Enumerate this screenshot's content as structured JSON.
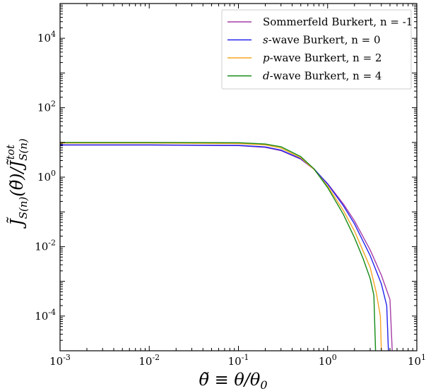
{
  "chart_data": {
    "type": "line",
    "xscale": "log",
    "yscale": "log",
    "xlim": [
      0.001,
      10
    ],
    "ylim": [
      1e-05,
      100000
    ],
    "xlabel": "θ̃ ≡ θ/θ0",
    "ylabel": "J̃S(n)(θ̃)/J̃S(n)tot",
    "xticks": [
      {
        "value": 0.001,
        "base": "10",
        "exp": "-3"
      },
      {
        "value": 0.01,
        "base": "10",
        "exp": "-2"
      },
      {
        "value": 0.1,
        "base": "10",
        "exp": "-1"
      },
      {
        "value": 1,
        "base": "10",
        "exp": "0"
      },
      {
        "value": 10,
        "base": "10",
        "exp": "1"
      }
    ],
    "yticks": [
      {
        "value": 0.0001,
        "base": "10",
        "exp": "-4"
      },
      {
        "value": 0.01,
        "base": "10",
        "exp": "-2"
      },
      {
        "value": 1,
        "base": "10",
        "exp": "0"
      },
      {
        "value": 100,
        "base": "10",
        "exp": "2"
      },
      {
        "value": 10000,
        "base": "10",
        "exp": "4"
      }
    ],
    "legend_location": "top-right",
    "grid": false,
    "series": [
      {
        "name": "Sommerfeld Burkert, n = -1",
        "color": "#a63da6",
        "x": [
          0.001,
          0.01,
          0.1,
          0.2,
          0.3,
          0.5,
          0.7,
          1.0,
          1.5,
          2.0,
          3.0,
          4.0,
          5.0,
          5.3
        ],
        "y": [
          8.4,
          8.4,
          8.1,
          7.2,
          5.8,
          3.3,
          1.7,
          0.65,
          0.17,
          0.055,
          0.008,
          0.0015,
          0.0003,
          1e-05
        ]
      },
      {
        "name": "s-wave Burkert, n = 0",
        "color": "#2222ee",
        "x": [
          0.001,
          0.01,
          0.1,
          0.2,
          0.3,
          0.5,
          0.7,
          1.0,
          1.5,
          2.0,
          3.0,
          4.0,
          4.6,
          4.8
        ],
        "y": [
          8.5,
          8.5,
          8.2,
          7.4,
          6.0,
          3.4,
          1.75,
          0.63,
          0.15,
          0.045,
          0.0055,
          0.00085,
          0.0002,
          1e-05
        ]
      },
      {
        "name": "p-wave Burkert, n = 2",
        "color": "#f5a623",
        "x": [
          0.001,
          0.01,
          0.1,
          0.2,
          0.3,
          0.5,
          0.7,
          1.0,
          1.5,
          2.0,
          3.0,
          3.5,
          3.9,
          4.0
        ],
        "y": [
          9.6,
          9.6,
          9.3,
          8.5,
          6.9,
          3.6,
          1.7,
          0.55,
          0.11,
          0.028,
          0.0025,
          0.0005,
          0.0001,
          1e-05
        ]
      },
      {
        "name": "d-wave Burkert, n = 4",
        "color": "#138a13",
        "x": [
          0.001,
          0.01,
          0.1,
          0.2,
          0.3,
          0.5,
          0.7,
          1.0,
          1.5,
          2.0,
          2.5,
          3.0,
          3.3,
          3.45
        ],
        "y": [
          10.0,
          10.0,
          9.8,
          9.0,
          7.5,
          3.9,
          1.75,
          0.5,
          0.085,
          0.018,
          0.0045,
          0.0012,
          0.0004,
          1e-05
        ]
      }
    ],
    "legend_entries": [
      {
        "italic": "",
        "text": "Sommerfeld Burkert, n = -1"
      },
      {
        "italic": "s",
        "text": "-wave Burkert, n = 0"
      },
      {
        "italic": "p",
        "text": "-wave Burkert, n = 2"
      },
      {
        "italic": "d",
        "text": "-wave Burkert, n = 4"
      }
    ]
  }
}
